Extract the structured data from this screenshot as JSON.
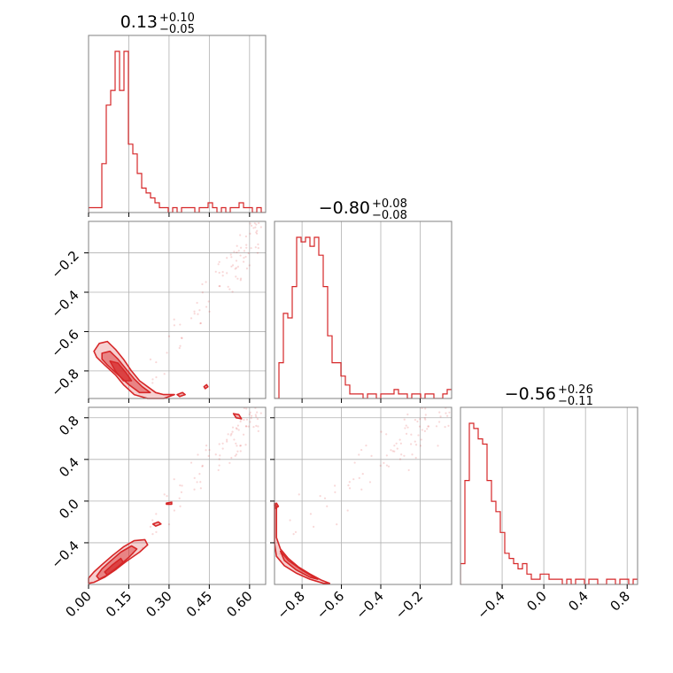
{
  "chart_data": {
    "type": "corner",
    "color": "#d62728",
    "panel_titles": [
      {
        "value": "0.13",
        "plus": "+0.10",
        "minus": "−0.05"
      },
      {
        "value": "−0.80",
        "plus": "+0.08",
        "minus": "−0.08"
      },
      {
        "value": "−0.56",
        "plus": "+0.26",
        "minus": "−0.11"
      }
    ],
    "params": [
      {
        "range": [
          0.0,
          0.66
        ],
        "ticks": [
          0.0,
          0.15,
          0.3,
          0.45,
          0.6
        ],
        "tick_labels": [
          "0.00",
          "0.15",
          "0.30",
          "0.45",
          "0.60"
        ]
      },
      {
        "range": [
          -0.94,
          -0.04
        ],
        "ticks": [
          -0.8,
          -0.6,
          -0.4,
          -0.2
        ],
        "tick_labels": [
          "−0.8",
          "−0.6",
          "−0.4",
          "−0.2"
        ]
      },
      {
        "range": [
          -0.8,
          0.9
        ],
        "ticks": [
          -0.4,
          0.0,
          0.4,
          0.8
        ],
        "tick_labels": [
          "−0.4",
          "0.0",
          "0.4",
          "0.8"
        ]
      }
    ],
    "histograms": [
      {
        "bin_edges_start": 0.0,
        "bin_width": 0.0165,
        "counts": [
          1,
          1,
          1,
          10,
          22,
          25,
          33,
          25,
          33,
          14,
          12,
          8,
          5,
          4,
          3,
          2,
          1,
          1,
          0,
          1,
          0,
          1,
          1,
          1,
          0,
          1,
          1,
          2,
          1,
          0,
          1,
          0,
          1,
          1,
          2,
          1,
          1,
          0,
          1,
          0
        ]
      },
      {
        "bin_edges_start": -0.94,
        "bin_width": 0.0225,
        "counts": [
          0,
          8,
          19,
          18,
          25,
          36,
          35,
          36,
          34,
          36,
          32,
          25,
          14,
          8,
          8,
          5,
          3,
          1,
          1,
          1,
          0,
          1,
          1,
          0,
          1,
          1,
          1,
          2,
          1,
          1,
          0,
          1,
          1,
          0,
          1,
          1,
          0,
          0,
          1,
          2
        ]
      },
      {
        "bin_edges_start": -0.8,
        "bin_width": 0.0425,
        "counts": [
          4,
          20,
          31,
          30,
          28,
          27,
          20,
          16,
          14,
          10,
          6,
          5,
          4,
          3,
          4,
          2,
          1,
          1,
          2,
          2,
          1,
          1,
          1,
          0,
          1,
          0,
          1,
          1,
          0,
          1,
          1,
          0,
          0,
          1,
          1,
          0,
          1,
          1,
          0,
          1
        ]
      }
    ],
    "contours": {
      "1-0": [
        {
          "level": "outer",
          "points": [
            [
              0.02,
              -0.7
            ],
            [
              0.04,
              -0.66
            ],
            [
              0.07,
              -0.65
            ],
            [
              0.1,
              -0.69
            ],
            [
              0.13,
              -0.74
            ],
            [
              0.16,
              -0.8
            ],
            [
              0.19,
              -0.85
            ],
            [
              0.22,
              -0.88
            ],
            [
              0.25,
              -0.91
            ],
            [
              0.28,
              -0.92
            ],
            [
              0.32,
              -0.92
            ],
            [
              0.28,
              -0.94
            ],
            [
              0.22,
              -0.94
            ],
            [
              0.17,
              -0.92
            ],
            [
              0.13,
              -0.87
            ],
            [
              0.1,
              -0.82
            ],
            [
              0.06,
              -0.77
            ],
            [
              0.03,
              -0.73
            ]
          ]
        },
        {
          "level": "mid",
          "points": [
            [
              0.05,
              -0.71
            ],
            [
              0.08,
              -0.7
            ],
            [
              0.11,
              -0.74
            ],
            [
              0.14,
              -0.79
            ],
            [
              0.17,
              -0.84
            ],
            [
              0.2,
              -0.88
            ],
            [
              0.23,
              -0.91
            ],
            [
              0.19,
              -0.91
            ],
            [
              0.15,
              -0.87
            ],
            [
              0.11,
              -0.82
            ],
            [
              0.07,
              -0.77
            ],
            [
              0.05,
              -0.74
            ]
          ]
        },
        {
          "level": "inner",
          "points": [
            [
              0.08,
              -0.75
            ],
            [
              0.11,
              -0.76
            ],
            [
              0.14,
              -0.81
            ],
            [
              0.16,
              -0.85
            ],
            [
              0.13,
              -0.85
            ],
            [
              0.1,
              -0.8
            ]
          ]
        },
        {
          "level": "island",
          "points": [
            [
              0.33,
              -0.92
            ],
            [
              0.35,
              -0.91
            ],
            [
              0.36,
              -0.92
            ],
            [
              0.34,
              -0.93
            ]
          ]
        },
        {
          "level": "island",
          "points": [
            [
              0.43,
              -0.88
            ],
            [
              0.44,
              -0.87
            ],
            [
              0.445,
              -0.88
            ],
            [
              0.435,
              -0.89
            ]
          ]
        }
      ],
      "2-0": [
        {
          "level": "outer",
          "points": [
            [
              0.0,
              -0.74
            ],
            [
              0.02,
              -0.68
            ],
            [
              0.05,
              -0.61
            ],
            [
              0.09,
              -0.52
            ],
            [
              0.13,
              -0.44
            ],
            [
              0.17,
              -0.38
            ],
            [
              0.21,
              -0.37
            ],
            [
              0.22,
              -0.42
            ],
            [
              0.19,
              -0.49
            ],
            [
              0.14,
              -0.58
            ],
            [
              0.1,
              -0.66
            ],
            [
              0.06,
              -0.73
            ],
            [
              0.02,
              -0.78
            ],
            [
              0.0,
              -0.79
            ]
          ]
        },
        {
          "level": "mid",
          "points": [
            [
              0.03,
              -0.72
            ],
            [
              0.05,
              -0.65
            ],
            [
              0.08,
              -0.58
            ],
            [
              0.12,
              -0.49
            ],
            [
              0.16,
              -0.43
            ],
            [
              0.18,
              -0.46
            ],
            [
              0.15,
              -0.54
            ],
            [
              0.11,
              -0.63
            ],
            [
              0.07,
              -0.71
            ],
            [
              0.04,
              -0.75
            ]
          ]
        },
        {
          "level": "inner",
          "points": [
            [
              0.06,
              -0.68
            ],
            [
              0.09,
              -0.61
            ],
            [
              0.12,
              -0.55
            ],
            [
              0.13,
              -0.59
            ],
            [
              0.1,
              -0.66
            ],
            [
              0.07,
              -0.71
            ]
          ]
        },
        {
          "level": "island",
          "points": [
            [
              0.29,
              -0.02
            ],
            [
              0.31,
              -0.01
            ],
            [
              0.31,
              -0.03
            ],
            [
              0.29,
              -0.03
            ]
          ]
        },
        {
          "level": "island",
          "points": [
            [
              0.24,
              -0.22
            ],
            [
              0.26,
              -0.2
            ],
            [
              0.27,
              -0.22
            ],
            [
              0.25,
              -0.24
            ]
          ]
        },
        {
          "level": "island",
          "points": [
            [
              0.54,
              0.84
            ],
            [
              0.56,
              0.83
            ],
            [
              0.57,
              0.79
            ],
            [
              0.55,
              0.8
            ]
          ]
        }
      ],
      "2-1": [
        {
          "level": "outer",
          "points": [
            [
              -0.94,
              -0.02
            ],
            [
              -0.93,
              -0.05
            ],
            [
              -0.93,
              -0.35
            ],
            [
              -0.91,
              -0.46
            ],
            [
              -0.87,
              -0.55
            ],
            [
              -0.82,
              -0.63
            ],
            [
              -0.76,
              -0.7
            ],
            [
              -0.7,
              -0.76
            ],
            [
              -0.66,
              -0.79
            ],
            [
              -0.69,
              -0.79
            ],
            [
              -0.76,
              -0.75
            ],
            [
              -0.83,
              -0.69
            ],
            [
              -0.89,
              -0.62
            ],
            [
              -0.93,
              -0.53
            ],
            [
              -0.94,
              -0.4
            ]
          ]
        },
        {
          "level": "mid",
          "points": [
            [
              -0.91,
              -0.48
            ],
            [
              -0.87,
              -0.57
            ],
            [
              -0.81,
              -0.65
            ],
            [
              -0.75,
              -0.72
            ],
            [
              -0.72,
              -0.75
            ],
            [
              -0.76,
              -0.73
            ],
            [
              -0.83,
              -0.66
            ],
            [
              -0.89,
              -0.57
            ]
          ]
        },
        {
          "level": "island",
          "points": [
            [
              -0.94,
              -0.04
            ],
            [
              -0.93,
              -0.02
            ],
            [
              -0.92,
              -0.05
            ],
            [
              -0.935,
              -0.07
            ]
          ]
        }
      ]
    }
  }
}
